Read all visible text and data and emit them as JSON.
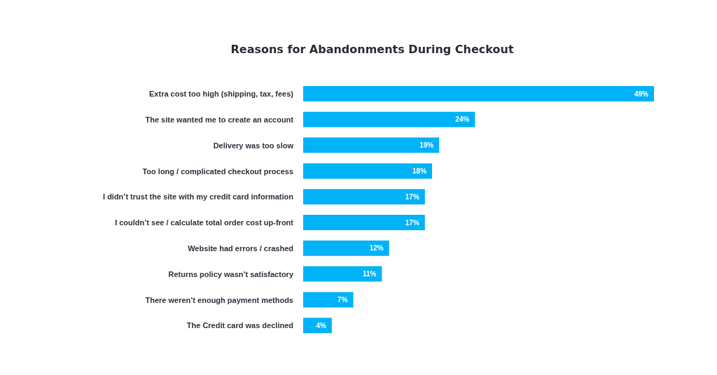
{
  "chart_data": {
    "type": "bar",
    "orientation": "horizontal",
    "title": "Reasons for Abandonments During Checkout",
    "categories": [
      "Extra cost too high (shipping, tax, fees)",
      "The site wanted me to create an account",
      "Delivery was too slow",
      "Too long / complicated checkout process",
      "I didn’t trust the site with my credit card information",
      "I couldn’t see / calculate total order cost up-front",
      "Website had errors / crashed",
      "Returns policy wasn’t satisfactory",
      "There weren’t enough payment methods",
      "The Credit card was declined"
    ],
    "values": [
      49,
      24,
      19,
      18,
      17,
      17,
      12,
      11,
      7,
      4
    ],
    "value_labels": [
      "49%",
      "24%",
      "19%",
      "18%",
      "17%",
      "17%",
      "12%",
      "11%",
      "7%",
      "4%"
    ],
    "color": "#00b2f7"
  }
}
